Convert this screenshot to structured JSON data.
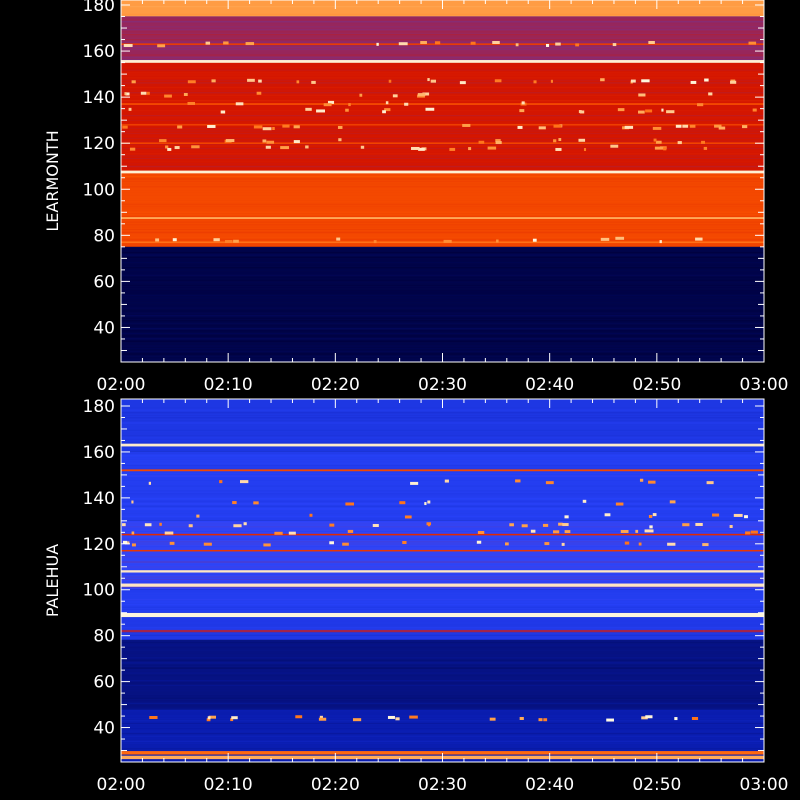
{
  "chart_data": [
    {
      "type": "heatmap",
      "ylabel": "LEARMONTH",
      "x_tick_labels": [
        "02:00",
        "02:10",
        "02:20",
        "02:30",
        "02:40",
        "02:50",
        "03:00"
      ],
      "xlim": [
        "02:00",
        "03:00"
      ],
      "y_ticks": [
        40,
        60,
        80,
        100,
        120,
        140,
        160,
        180
      ],
      "ylim": [
        25,
        180
      ],
      "colorscale": [
        "#00003a",
        "#0a1eb4",
        "#2b46ff",
        "#d41600",
        "#ff5a00",
        "#ffa24a",
        "#fffbe6"
      ],
      "background_intensity": [
        {
          "from": 25,
          "to": 75,
          "value": 0.02
        },
        {
          "from": 75,
          "to": 108,
          "value": 0.62
        },
        {
          "from": 108,
          "to": 155,
          "value": 0.5
        },
        {
          "from": 155,
          "to": 175,
          "value": 0.44
        },
        {
          "from": 175,
          "to": 180,
          "value": 0.82
        }
      ],
      "bright_lines_mhz": [
        {
          "freq": 155.5,
          "value": 0.98,
          "width": 1.2
        },
        {
          "freq": 107.5,
          "value": 0.98,
          "width": 1.2
        },
        {
          "freq": 87.5,
          "value": 0.85,
          "width": 0.8
        },
        {
          "freq": 163,
          "value": 0.6,
          "width": 0.6
        },
        {
          "freq": 137,
          "value": 0.65,
          "width": 0.5
        },
        {
          "freq": 128,
          "value": 0.6,
          "width": 0.5
        },
        {
          "freq": 120,
          "value": 0.62,
          "width": 0.5
        },
        {
          "freq": 77,
          "value": 0.72,
          "width": 0.5
        }
      ],
      "intermittent_bursts_mhz": [
        163,
        147,
        141,
        137,
        134,
        127,
        121,
        118,
        78
      ]
    },
    {
      "type": "heatmap",
      "ylabel": "PALEHUA",
      "x_tick_labels": [
        "02:00",
        "02:10",
        "02:20",
        "02:30",
        "02:40",
        "02:50",
        "03:00"
      ],
      "xlim": [
        "02:00",
        "03:00"
      ],
      "y_ticks": [
        40,
        60,
        80,
        100,
        120,
        140,
        160,
        180
      ],
      "ylim": [
        25,
        180
      ],
      "colorscale": [
        "#00003a",
        "#0a1eb4",
        "#2b46ff",
        "#d41600",
        "#ff5a00",
        "#ffa24a",
        "#fffbe6"
      ],
      "background_intensity": [
        {
          "from": 25,
          "to": 48,
          "value": 0.16
        },
        {
          "from": 48,
          "to": 78,
          "value": 0.1
        },
        {
          "from": 78,
          "to": 90,
          "value": 0.28
        },
        {
          "from": 90,
          "to": 100,
          "value": 0.3
        },
        {
          "from": 100,
          "to": 130,
          "value": 0.34
        },
        {
          "from": 130,
          "to": 160,
          "value": 0.3
        },
        {
          "from": 160,
          "to": 180,
          "value": 0.27
        }
      ],
      "bright_lines_mhz": [
        {
          "freq": 163,
          "value": 0.97,
          "width": 1.2
        },
        {
          "freq": 152,
          "value": 0.62,
          "width": 0.8
        },
        {
          "freq": 117,
          "value": 0.58,
          "width": 0.6
        },
        {
          "freq": 124,
          "value": 0.55,
          "width": 0.5
        },
        {
          "freq": 108,
          "value": 0.96,
          "width": 1.0
        },
        {
          "freq": 102,
          "value": 0.96,
          "width": 1.4
        },
        {
          "freq": 89,
          "value": 0.99,
          "width": 1.8
        },
        {
          "freq": 82,
          "value": 0.45,
          "width": 1.0
        },
        {
          "freq": 29,
          "value": 0.7,
          "width": 1.5
        },
        {
          "freq": 27,
          "value": 0.85,
          "width": 1.5
        }
      ],
      "intermittent_bursts_mhz": [
        147,
        138,
        132,
        128,
        125,
        120,
        44
      ]
    }
  ]
}
